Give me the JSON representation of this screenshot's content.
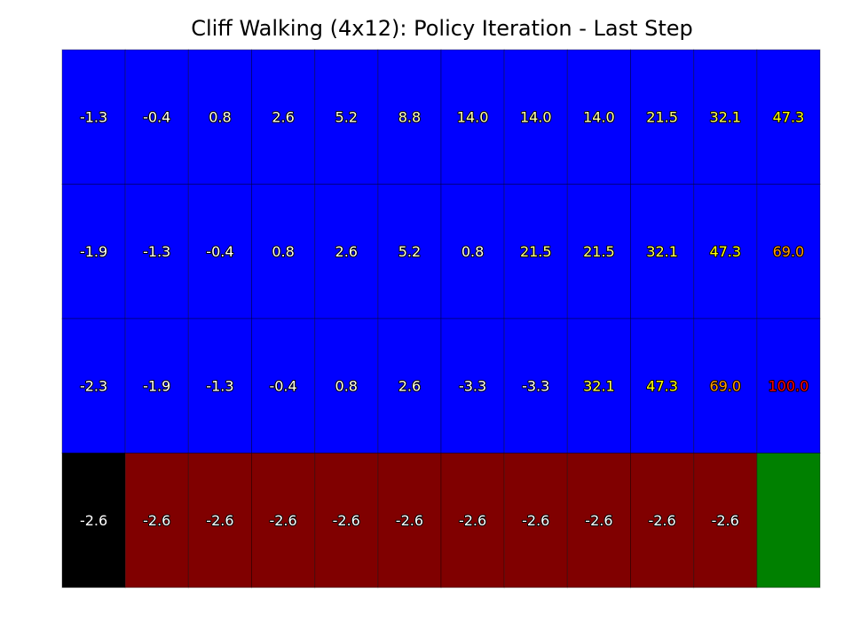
{
  "chart_data": {
    "type": "heatmap",
    "title": "Cliff Walking (4x12): Policy Iteration - Last Step",
    "rows": 4,
    "cols": 12,
    "values": [
      [
        -1.3,
        -0.4,
        0.8,
        2.6,
        5.2,
        8.8,
        14.0,
        14.0,
        14.0,
        21.5,
        32.1,
        47.3
      ],
      [
        -1.9,
        -1.3,
        -0.4,
        0.8,
        2.6,
        5.2,
        0.8,
        21.5,
        21.5,
        32.1,
        47.3,
        69.0
      ],
      [
        -2.3,
        -1.9,
        -1.3,
        -0.4,
        0.8,
        2.6,
        -3.3,
        -3.3,
        32.1,
        47.3,
        69.0,
        100.0
      ],
      [
        -2.6,
        -2.6,
        -2.6,
        -2.6,
        -2.6,
        -2.6,
        -2.6,
        -2.6,
        -2.6,
        -2.6,
        -2.6,
        null
      ]
    ],
    "cell_types": [
      [
        "normal",
        "normal",
        "normal",
        "normal",
        "normal",
        "normal",
        "normal",
        "normal",
        "normal",
        "normal",
        "normal",
        "normal"
      ],
      [
        "normal",
        "normal",
        "normal",
        "normal",
        "normal",
        "normal",
        "normal",
        "normal",
        "normal",
        "normal",
        "normal",
        "normal"
      ],
      [
        "normal",
        "normal",
        "normal",
        "normal",
        "normal",
        "normal",
        "normal",
        "normal",
        "normal",
        "normal",
        "normal",
        "normal"
      ],
      [
        "start",
        "cliff",
        "cliff",
        "cliff",
        "cliff",
        "cliff",
        "cliff",
        "cliff",
        "cliff",
        "cliff",
        "cliff",
        "goal"
      ]
    ],
    "colors": {
      "normal": "#0000ff",
      "start": "#000000",
      "cliff": "#800000",
      "goal": "#008000",
      "grid_line": "#000000",
      "text_low": "#ffffff",
      "text_mid": "#ffff00",
      "text_high": "#ff0000"
    },
    "color_scale": {
      "min": -2.6,
      "max": 100.0
    }
  }
}
